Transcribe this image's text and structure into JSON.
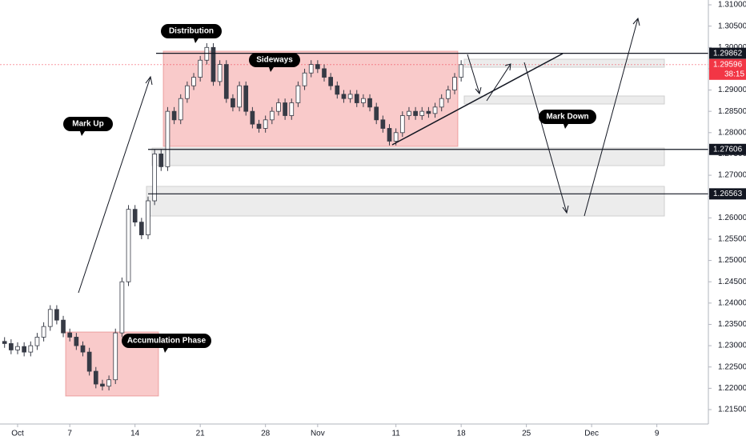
{
  "chart_data": {
    "type": "candlestick",
    "annotations": [
      "Distribution",
      "Sideways",
      "Mark Up",
      "Mark Down",
      "Accumulation Phase"
    ],
    "x": [
      -1,
      -0.5,
      0,
      0.5,
      1,
      1.5,
      2,
      2.5,
      3,
      3.5,
      4,
      4.5,
      5,
      5.5,
      6,
      6.5,
      7,
      7.5,
      8,
      8.5,
      9,
      9.5,
      10,
      10.5,
      11,
      11.5,
      12,
      12.5,
      13,
      13.5,
      14,
      14.5,
      15,
      15.5,
      16,
      16.5,
      17,
      17.5,
      18,
      18.5,
      19,
      19.5,
      20,
      20.5,
      21,
      21.5,
      22,
      22.5,
      23,
      23.5,
      24,
      24.5,
      25,
      25.5,
      26,
      26.5,
      27,
      27.5,
      28,
      28.5,
      29,
      29.5,
      30,
      30.5,
      31,
      31.5,
      32,
      32.5,
      33,
      33.5,
      34
    ],
    "open": [
      1.231,
      1.2305,
      1.229,
      1.2298,
      1.2285,
      1.23,
      1.232,
      1.2345,
      1.2385,
      1.236,
      1.233,
      1.232,
      1.23,
      1.2285,
      1.224,
      1.221,
      1.2205,
      1.222,
      1.233,
      1.245,
      1.262,
      1.259,
      1.256,
      1.264,
      1.275,
      1.272,
      1.285,
      1.283,
      1.288,
      1.291,
      1.293,
      1.297,
      1.3,
      1.292,
      1.296,
      1.288,
      1.286,
      1.291,
      1.285,
      1.282,
      1.281,
      1.283,
      1.285,
      1.287,
      1.284,
      1.287,
      1.291,
      1.294,
      1.296,
      1.295,
      1.293,
      1.291,
      1.289,
      1.288,
      1.289,
      1.287,
      1.288,
      1.286,
      1.283,
      1.281,
      1.278,
      1.28,
      1.284,
      1.285,
      1.284,
      1.285,
      1.2845,
      1.286,
      1.288,
      1.29,
      1.293
    ],
    "high": [
      1.232,
      1.2315,
      1.2308,
      1.2308,
      1.231,
      1.233,
      1.2355,
      1.2395,
      1.2395,
      1.237,
      1.234,
      1.233,
      1.231,
      1.2295,
      1.225,
      1.222,
      1.223,
      1.234,
      1.246,
      1.263,
      1.263,
      1.26,
      1.265,
      1.276,
      1.276,
      1.286,
      1.286,
      1.289,
      1.292,
      1.294,
      1.298,
      1.301,
      1.301,
      1.297,
      1.297,
      1.289,
      1.292,
      1.292,
      1.286,
      1.283,
      1.284,
      1.286,
      1.288,
      1.288,
      1.288,
      1.292,
      1.295,
      1.297,
      1.297,
      1.296,
      1.294,
      1.292,
      1.29,
      1.29,
      1.29,
      1.289,
      1.289,
      1.287,
      1.284,
      1.282,
      1.281,
      1.285,
      1.286,
      1.286,
      1.286,
      1.286,
      1.287,
      1.289,
      1.291,
      1.294,
      1.297
    ],
    "low": [
      1.2295,
      1.228,
      1.228,
      1.2275,
      1.2275,
      1.229,
      1.231,
      1.2335,
      1.235,
      1.232,
      1.231,
      1.229,
      1.2275,
      1.223,
      1.22,
      1.2195,
      1.2195,
      1.221,
      1.232,
      1.244,
      1.258,
      1.255,
      1.255,
      1.263,
      1.271,
      1.271,
      1.282,
      1.282,
      1.287,
      1.29,
      1.292,
      1.296,
      1.291,
      1.291,
      1.287,
      1.285,
      1.285,
      1.284,
      1.281,
      1.28,
      1.28,
      1.282,
      1.284,
      1.283,
      1.283,
      1.286,
      1.29,
      1.293,
      1.294,
      1.292,
      1.29,
      1.288,
      1.287,
      1.287,
      1.286,
      1.286,
      1.285,
      1.282,
      1.28,
      1.277,
      1.277,
      1.279,
      1.283,
      1.283,
      1.283,
      1.2835,
      1.2835,
      1.285,
      1.287,
      1.289,
      1.292
    ],
    "close": [
      1.2305,
      1.229,
      1.2298,
      1.2285,
      1.23,
      1.232,
      1.2345,
      1.2385,
      1.236,
      1.233,
      1.232,
      1.23,
      1.2285,
      1.224,
      1.221,
      1.2205,
      1.222,
      1.233,
      1.245,
      1.262,
      1.259,
      1.256,
      1.264,
      1.275,
      1.272,
      1.285,
      1.283,
      1.288,
      1.291,
      1.293,
      1.297,
      1.3,
      1.292,
      1.296,
      1.288,
      1.286,
      1.291,
      1.285,
      1.282,
      1.281,
      1.283,
      1.285,
      1.287,
      1.284,
      1.287,
      1.291,
      1.294,
      1.296,
      1.295,
      1.293,
      1.291,
      1.289,
      1.288,
      1.289,
      1.287,
      1.288,
      1.286,
      1.283,
      1.281,
      1.278,
      1.28,
      1.284,
      1.285,
      1.284,
      1.285,
      1.2845,
      1.286,
      1.288,
      1.29,
      1.293,
      1.29596
    ],
    "up_color": "#ffffff",
    "down_color": "#363a45",
    "wick_color": "#363a45",
    "xlim": [
      -1.35,
      52.95
    ],
    "xticks": [
      {
        "value": 0,
        "label": "Oct"
      },
      {
        "value": 4,
        "label": "7"
      },
      {
        "value": 9,
        "label": "14"
      },
      {
        "value": 14,
        "label": "21"
      },
      {
        "value": 19,
        "label": "28"
      },
      {
        "value": 23,
        "label": "Nov"
      },
      {
        "value": 29,
        "label": "11"
      },
      {
        "value": 34,
        "label": "18"
      },
      {
        "value": 39,
        "label": "25"
      },
      {
        "value": 44,
        "label": "Dec"
      },
      {
        "value": 49,
        "label": "9"
      }
    ],
    "ylim": [
      1.21162,
      1.31113
    ],
    "yticks": [
      {
        "value": 1.215,
        "label": "1.21500"
      },
      {
        "value": 1.22,
        "label": "1.22000"
      },
      {
        "value": 1.225,
        "label": "1.22500"
      },
      {
        "value": 1.23,
        "label": "1.23000"
      },
      {
        "value": 1.235,
        "label": "1.23500"
      },
      {
        "value": 1.24,
        "label": "1.24000"
      },
      {
        "value": 1.245,
        "label": "1.24500"
      },
      {
        "value": 1.25,
        "label": "1.25000"
      },
      {
        "value": 1.255,
        "label": "1.25500"
      },
      {
        "value": 1.26,
        "label": "1.26000"
      },
      {
        "value": 1.265,
        "label": "1.26500"
      },
      {
        "value": 1.27,
        "label": "1.27000"
      },
      {
        "value": 1.275,
        "label": "1.27500"
      },
      {
        "value": 1.28,
        "label": "1.28000"
      },
      {
        "value": 1.285,
        "label": "1.28500"
      },
      {
        "value": 1.29,
        "label": "1.29000"
      },
      {
        "value": 1.295,
        "label": "1.29500"
      },
      {
        "value": 1.3,
        "label": "1.30000"
      },
      {
        "value": 1.305,
        "label": "1.30500"
      },
      {
        "value": 1.31,
        "label": "1.31000"
      }
    ],
    "levels": [
      1.29862,
      1.27606,
      1.26563
    ],
    "current": {
      "value": 1.29596,
      "countdown": "38:15",
      "color": "#f23645"
    },
    "grid": false
  }
}
